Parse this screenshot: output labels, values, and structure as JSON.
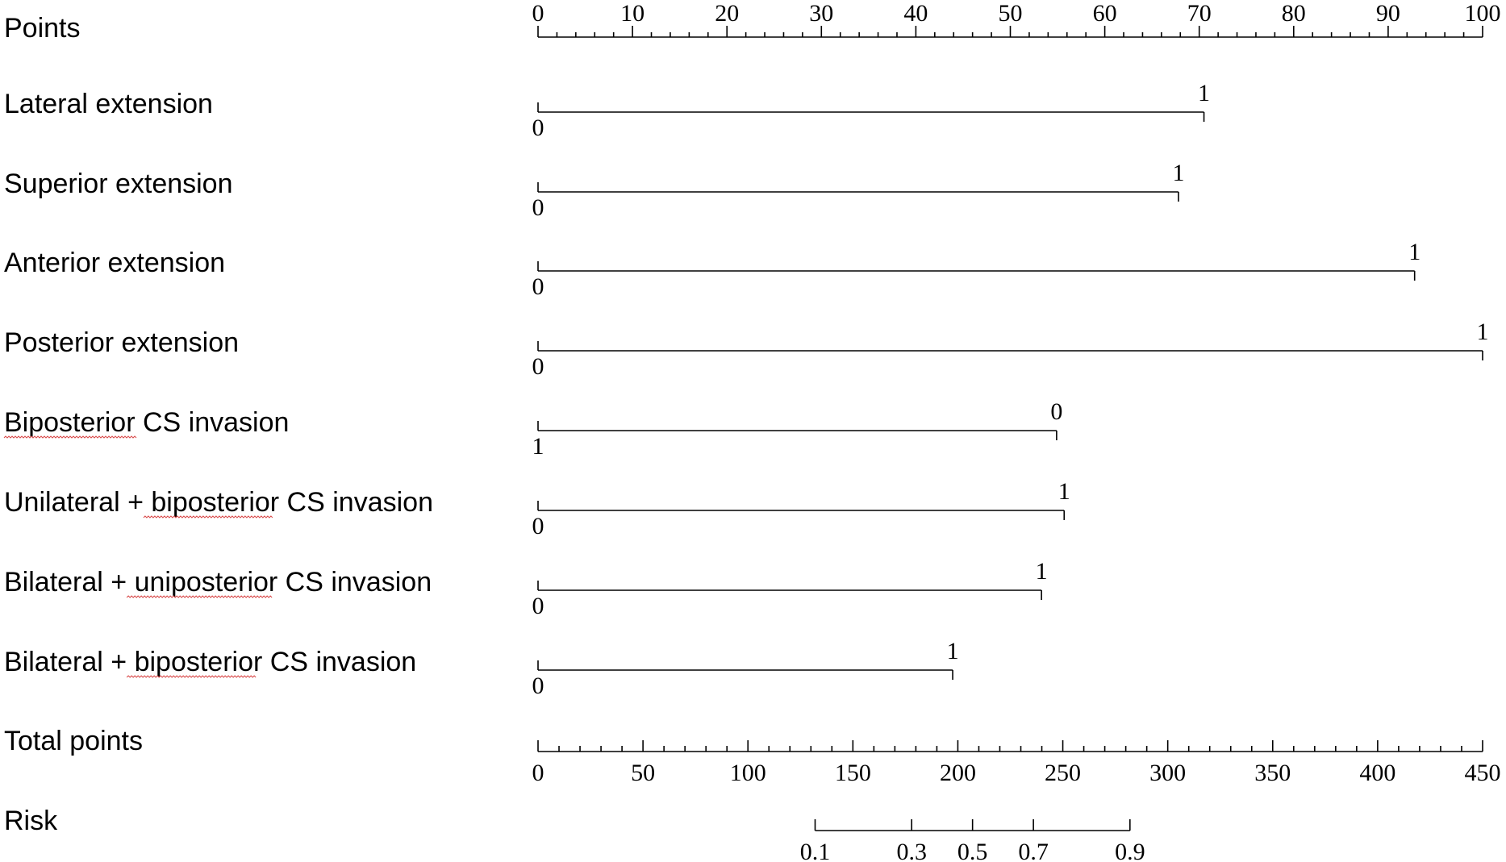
{
  "chart_data": {
    "type": "nomogram",
    "points_scale": {
      "label": "Points",
      "min": 0,
      "max": 100,
      "major_ticks": [
        0,
        10,
        20,
        30,
        40,
        50,
        60,
        70,
        80,
        90,
        100
      ],
      "minor_step": 2
    },
    "variables": [
      {
        "label": "Lateral extension",
        "levels": [
          {
            "text": "0",
            "points": 0
          },
          {
            "text": "1",
            "points": 70.5
          }
        ]
      },
      {
        "label": "Superior extension",
        "levels": [
          {
            "text": "0",
            "points": 0
          },
          {
            "text": "1",
            "points": 67.8
          }
        ]
      },
      {
        "label": "Anterior extension",
        "levels": [
          {
            "text": "0",
            "points": 0
          },
          {
            "text": "1",
            "points": 92.8
          }
        ]
      },
      {
        "label": "Posterior extension",
        "levels": [
          {
            "text": "0",
            "points": 0
          },
          {
            "text": "1",
            "points": 100
          }
        ]
      },
      {
        "label": "Biposterior CS invasion",
        "levels": [
          {
            "text": "1",
            "points": 0
          },
          {
            "text": "0",
            "points": 54.9
          }
        ]
      },
      {
        "label": "Unilateral + biposterior CS invasion",
        "levels": [
          {
            "text": "0",
            "points": 0
          },
          {
            "text": "1",
            "points": 55.7
          }
        ]
      },
      {
        "label": "Bilateral + uniposterior CS invasion",
        "levels": [
          {
            "text": "0",
            "points": 0
          },
          {
            "text": "1",
            "points": 53.3
          }
        ]
      },
      {
        "label": "Bilateral + biposterior CS invasion",
        "levels": [
          {
            "text": "0",
            "points": 0
          },
          {
            "text": "1",
            "points": 43.9
          }
        ]
      }
    ],
    "total_points": {
      "label": "Total points",
      "min": 0,
      "max": 450,
      "major_ticks": [
        0,
        50,
        100,
        150,
        200,
        250,
        300,
        350,
        400,
        450
      ],
      "minor_step": 10
    },
    "risk": {
      "label": "Risk",
      "ticks": [
        {
          "text": "0.1",
          "total_points": 132
        },
        {
          "text": "0.3",
          "total_points": 178
        },
        {
          "text": "0.5",
          "total_points": 207
        },
        {
          "text": "0.7",
          "total_points": 236
        },
        {
          "text": "0.9",
          "total_points": 282
        }
      ]
    },
    "spellcheck_underlined_words": [
      "Biposterior",
      "biposterior",
      "uniposterior",
      "biposterior"
    ]
  }
}
